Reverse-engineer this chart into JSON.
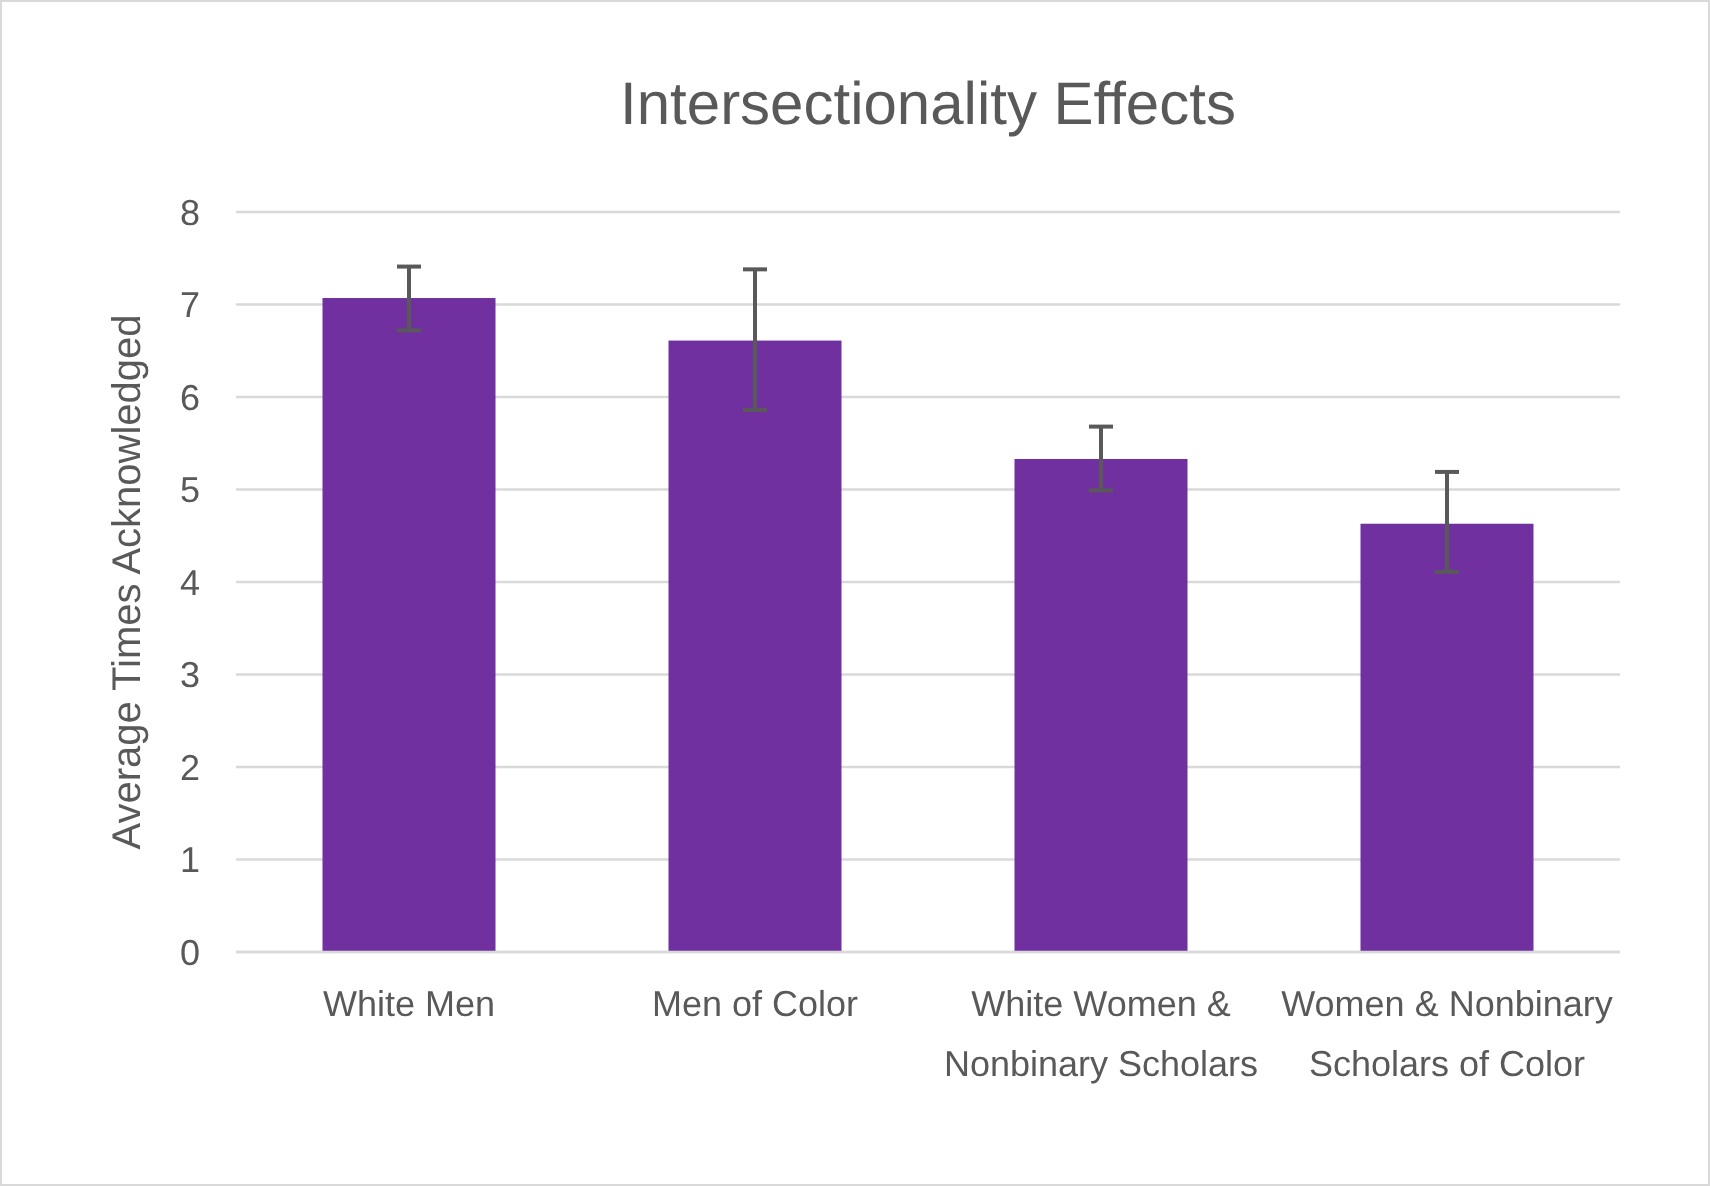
{
  "chart_data": {
    "type": "bar",
    "title": "Intersectionality Effects",
    "ylabel": "Average Times Acknowledged",
    "categories": [
      "White Men",
      "Men of Color",
      "White Women & Nonbinary Scholars",
      "Women & Nonbinary Scholars of Color"
    ],
    "values": [
      7.07,
      6.61,
      5.33,
      4.63
    ],
    "errors": [
      [
        6.72,
        7.41
      ],
      [
        5.86,
        7.38
      ],
      [
        4.99,
        5.68
      ],
      [
        4.11,
        5.19
      ]
    ],
    "color": "#7030a0",
    "ylim": [
      0,
      8
    ],
    "yticks": [
      0,
      1,
      2,
      3,
      4,
      5,
      6,
      7,
      8
    ],
    "grid": "y"
  }
}
